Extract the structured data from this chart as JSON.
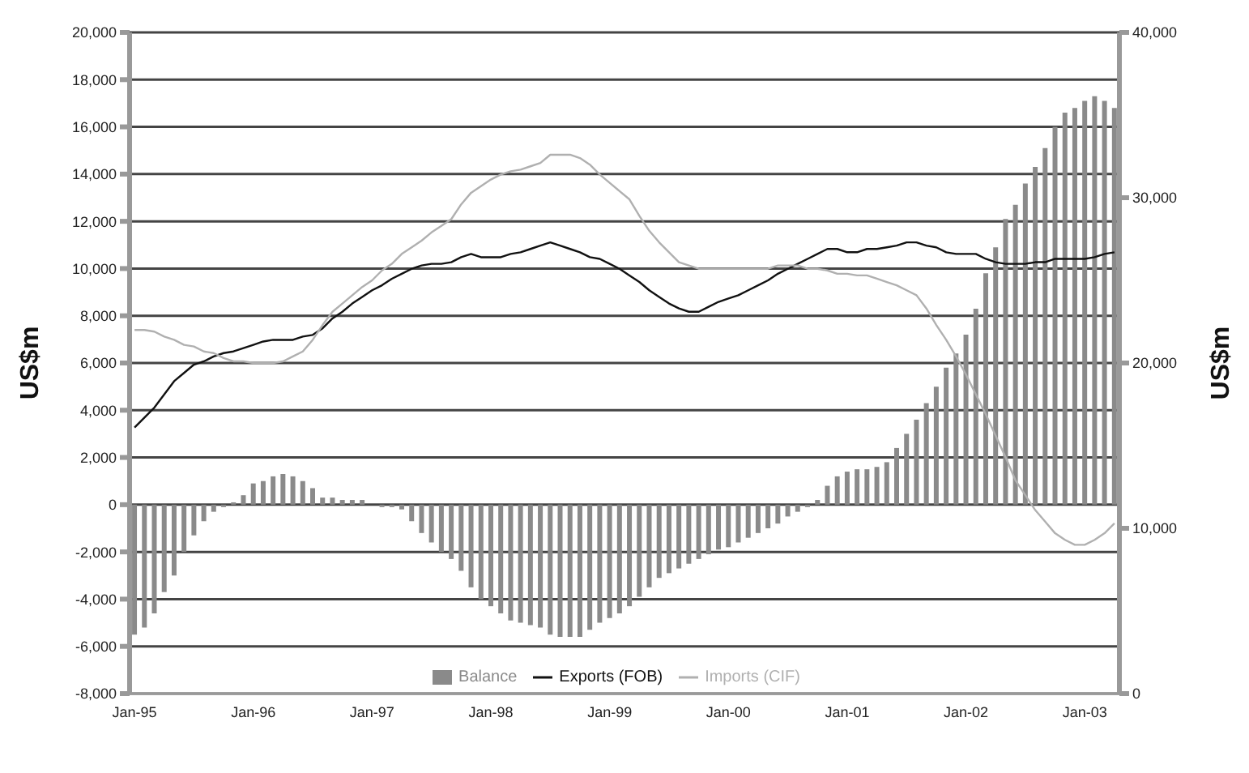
{
  "chart_data": {
    "type": "bar",
    "ylabel": "US$m",
    "y2label": "US$m",
    "categories": [
      "Jan-95",
      null,
      null,
      null,
      null,
      null,
      null,
      null,
      null,
      null,
      null,
      null,
      "Jan-96",
      null,
      null,
      null,
      null,
      null,
      null,
      null,
      null,
      null,
      null,
      null,
      "Jan-97",
      null,
      null,
      null,
      null,
      null,
      null,
      null,
      null,
      null,
      null,
      null,
      "Jan-98",
      null,
      null,
      null,
      null,
      null,
      null,
      null,
      null,
      null,
      null,
      null,
      "Jan-99",
      null,
      null,
      null,
      null,
      null,
      null,
      null,
      null,
      null,
      null,
      null,
      "Jan-00",
      null,
      null,
      null,
      null,
      null,
      null,
      null,
      null,
      null,
      null,
      null,
      "Jan-01",
      null,
      null,
      null,
      null,
      null,
      null,
      null,
      null,
      null,
      null,
      null,
      "Jan-02",
      null,
      null,
      null,
      null,
      null,
      null,
      null,
      null,
      null,
      null,
      null,
      "Jan-03",
      null,
      null,
      null
    ],
    "series": [
      {
        "name": "Balance",
        "color": "#8a8a8a",
        "values": [
          -5500,
          -5200,
          -4600,
          -3700,
          -3000,
          -2000,
          -1300,
          -700,
          -300,
          -100,
          100,
          400,
          900,
          1000,
          1200,
          1300,
          1200,
          1000,
          700,
          300,
          300,
          200,
          200,
          200,
          0,
          -100,
          -100,
          -200,
          -700,
          -1200,
          -1600,
          -2000,
          -2300,
          -2800,
          -3500,
          -4000,
          -4300,
          -4600,
          -4900,
          -5000,
          -5100,
          -5200,
          -5500,
          -5600,
          -5600,
          -5600,
          -5300,
          -5000,
          -4800,
          -4600,
          -4300,
          -3900,
          -3500,
          -3100,
          -2900,
          -2700,
          -2500,
          -2300,
          -2100,
          -1900,
          -1800,
          -1600,
          -1400,
          -1200,
          -1000,
          -800,
          -500,
          -300,
          -100,
          200,
          800,
          1200,
          1400,
          1500,
          1500,
          1600,
          1800,
          2400,
          3000,
          3600,
          4300,
          5000,
          5800,
          6400,
          7200,
          8300,
          9800,
          10900,
          12100,
          12700,
          13600,
          14300,
          15100,
          16000,
          16600,
          16800,
          17100,
          17300,
          17100,
          16800
        ]
      },
      {
        "name": "Exports (FOB)",
        "type": "line",
        "axis": "y2",
        "color": "#111111",
        "values": [
          16100,
          16700,
          17300,
          18100,
          18900,
          19400,
          19900,
          20100,
          20400,
          20600,
          20700,
          20900,
          21100,
          21300,
          21400,
          21400,
          21400,
          21600,
          21700,
          22100,
          22700,
          23100,
          23600,
          24000,
          24400,
          24700,
          25100,
          25400,
          25700,
          25900,
          26000,
          26000,
          26100,
          26400,
          26600,
          26400,
          26400,
          26400,
          26600,
          26700,
          26900,
          27100,
          27300,
          27100,
          26900,
          26700,
          26400,
          26300,
          26000,
          25700,
          25300,
          24900,
          24400,
          24000,
          23600,
          23300,
          23100,
          23100,
          23400,
          23700,
          23900,
          24100,
          24400,
          24700,
          25000,
          25400,
          25700,
          26000,
          26300,
          26600,
          26900,
          26900,
          26700,
          26700,
          26900,
          26900,
          27000,
          27100,
          27300,
          27300,
          27100,
          27000,
          26700,
          26600,
          26600,
          26600,
          26300,
          26100,
          26000,
          26000,
          26000,
          26100,
          26100,
          26300,
          26300,
          26300,
          26300,
          26400,
          26600,
          26700
        ]
      },
      {
        "name": "Imports (CIF)",
        "type": "line",
        "axis": "y2",
        "color": "#b0b0b0",
        "values": [
          22000,
          22000,
          21900,
          21600,
          21400,
          21100,
          21000,
          20700,
          20600,
          20300,
          20100,
          20100,
          20000,
          20000,
          20000,
          20100,
          20400,
          20700,
          21400,
          22300,
          23100,
          23600,
          24100,
          24600,
          25000,
          25600,
          26000,
          26600,
          27000,
          27400,
          27900,
          28300,
          28700,
          29600,
          30300,
          30700,
          31100,
          31400,
          31600,
          31700,
          31900,
          32100,
          32600,
          32600,
          32600,
          32400,
          32000,
          31400,
          30900,
          30400,
          29900,
          28900,
          28000,
          27300,
          26700,
          26100,
          25900,
          25700,
          25700,
          25700,
          25700,
          25700,
          25700,
          25700,
          25700,
          25900,
          25900,
          25900,
          25700,
          25700,
          25600,
          25400,
          25400,
          25300,
          25300,
          25100,
          24900,
          24700,
          24400,
          24100,
          23300,
          22300,
          21400,
          20400,
          19300,
          18100,
          16900,
          15600,
          14300,
          12900,
          12000,
          11100,
          10400,
          9700,
          9300,
          9000,
          9000,
          9300,
          9700,
          10300
        ]
      }
    ],
    "ylim": [
      -8000,
      20000
    ],
    "yticks": [
      {
        "value": -8000,
        "label": "-8,000"
      },
      {
        "value": -6000,
        "label": "-6,000"
      },
      {
        "value": -4000,
        "label": "-4,000"
      },
      {
        "value": -2000,
        "label": "-2,000"
      },
      0,
      {
        "value": 2000,
        "label": "2,000"
      },
      {
        "value": 4000,
        "label": "4,000"
      },
      {
        "value": 6000,
        "label": "6,000"
      },
      {
        "value": 8000,
        "label": "8,000"
      },
      {
        "value": 10000,
        "label": "10,000"
      },
      {
        "value": 12000,
        "label": "12,000"
      },
      {
        "value": 14000,
        "label": "14,000"
      },
      {
        "value": 16000,
        "label": "16,000"
      },
      {
        "value": 18000,
        "label": "18,000"
      },
      {
        "value": 20000,
        "label": "20,000"
      }
    ],
    "y2lim": [
      0,
      40000
    ],
    "y2ticks": [
      0,
      {
        "value": 10000,
        "label": "10,000"
      },
      {
        "value": 20000,
        "label": "20,000"
      },
      {
        "value": 30000,
        "label": "30,000"
      },
      {
        "value": 40000,
        "label": "40,000"
      }
    ],
    "grid": "y",
    "legend": "bottom"
  }
}
